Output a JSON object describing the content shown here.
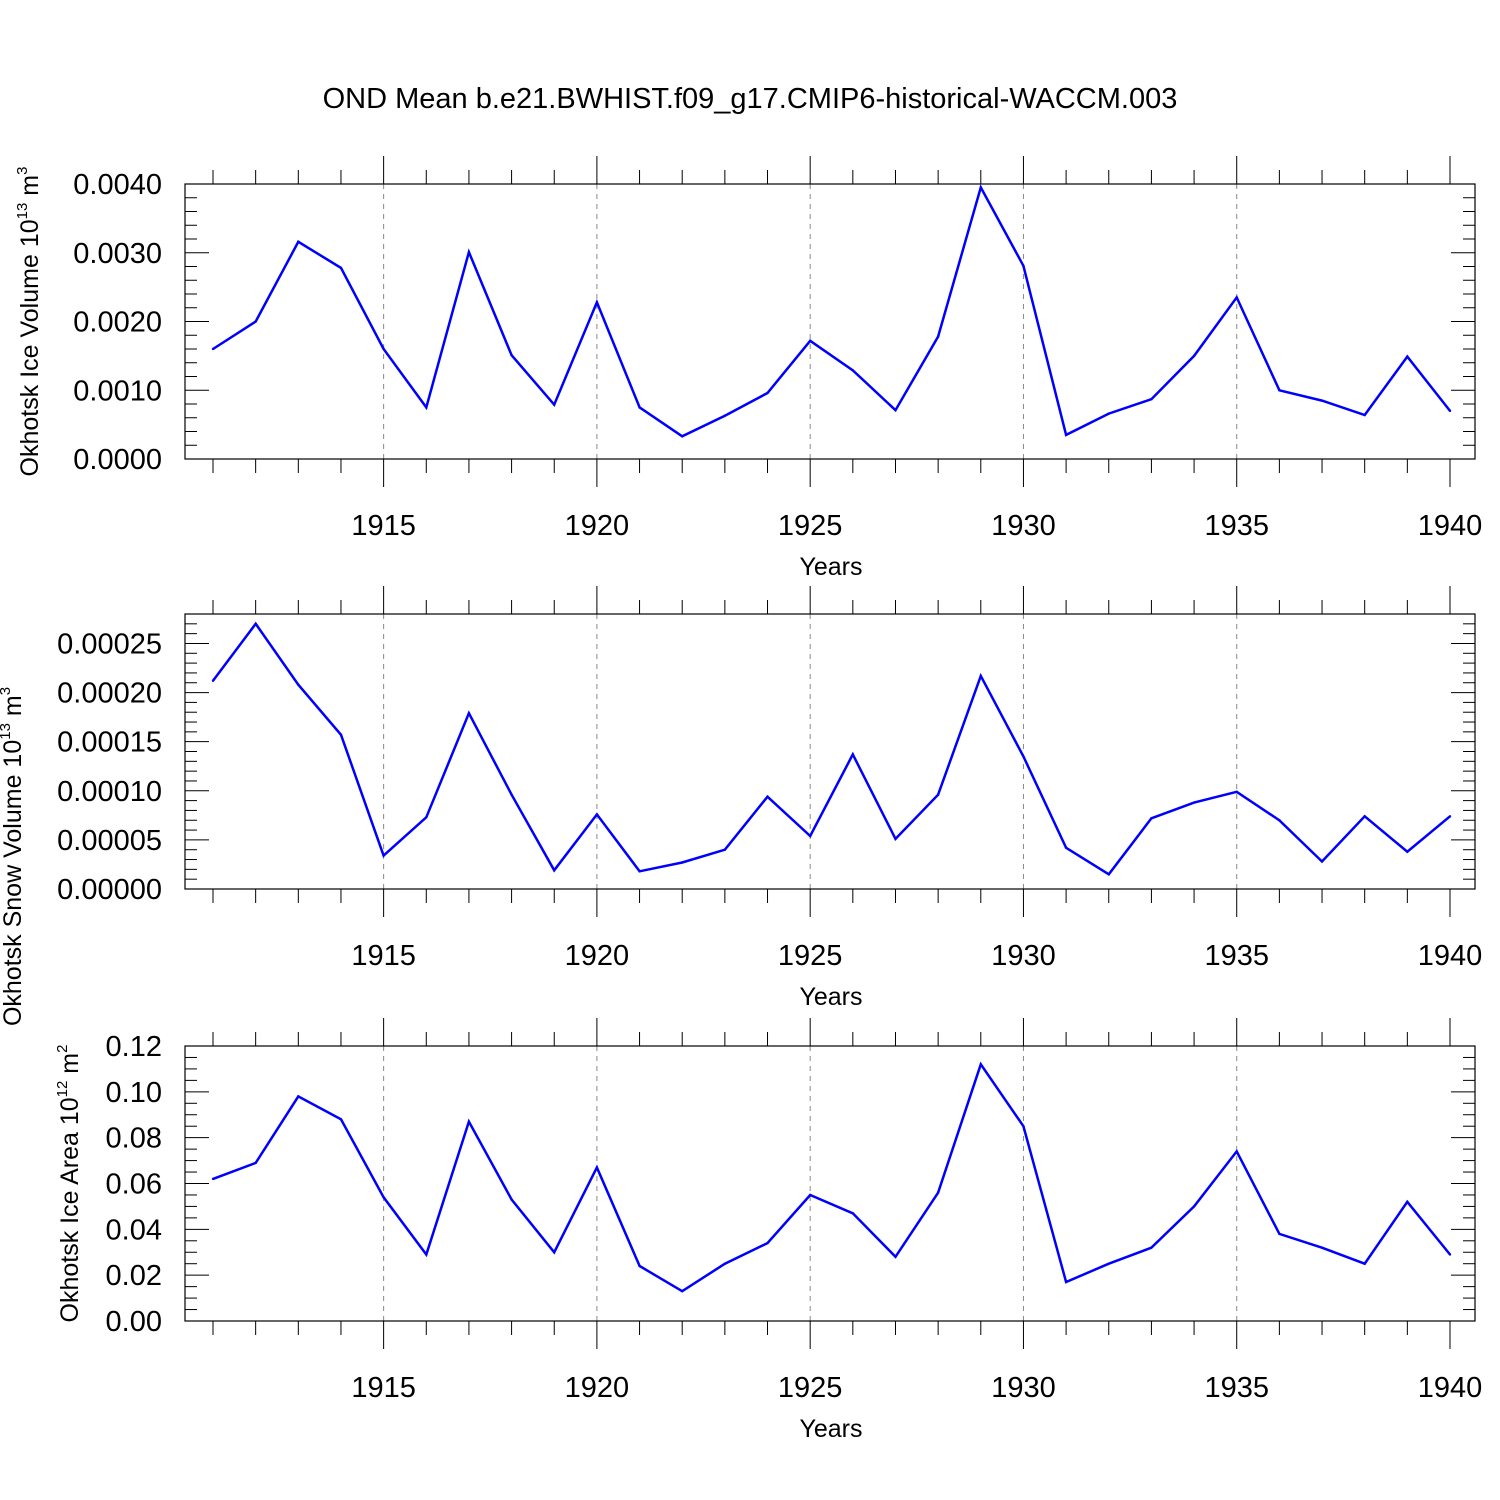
{
  "title": "OND Mean b.e21.BWHIST.f09_g17.CMIP6-historical-WACCM.003",
  "colors": {
    "line": "#0000ff",
    "axis": "#000000",
    "grid": "#888888"
  },
  "chart_data": [
    {
      "type": "line",
      "series": [
        {
          "name": "Okhotsk Ice Volume",
          "x": [
            1911,
            1912,
            1913,
            1914,
            1915,
            1916,
            1917,
            1918,
            1919,
            1920,
            1921,
            1922,
            1923,
            1924,
            1925,
            1926,
            1927,
            1928,
            1929,
            1930,
            1931,
            1932,
            1933,
            1934,
            1935,
            1936,
            1937,
            1938,
            1939,
            1940
          ],
          "values": [
            0.0016,
            0.002,
            0.00316,
            0.00278,
            0.0016,
            0.00075,
            0.00301,
            0.00151,
            0.00079,
            0.00228,
            0.00075,
            0.00033,
            0.00063,
            0.00096,
            0.00172,
            0.00129,
            0.00071,
            0.00178,
            0.00395,
            0.00281,
            0.00035,
            0.00066,
            0.00087,
            0.0015,
            0.00235,
            0.001,
            0.00085,
            0.00064,
            0.00149,
            0.0007
          ]
        }
      ],
      "xlabel": "Years",
      "ylabel": "Okhotsk Ice Volume 10",
      "ylabel_exp": "13",
      "ylabel_unit": " m",
      "ylabel_unit_exp": "3",
      "xlim": [
        1911,
        1940
      ],
      "ylim": [
        0,
        0.004
      ],
      "ytick_values": [
        0,
        0.001,
        0.002,
        0.003,
        0.004
      ],
      "ytick_labels": [
        "0.0000",
        "0.0010",
        "0.0020",
        "0.0030",
        "0.0040"
      ],
      "ytick_minor_step": 0.0002,
      "xtick_values": [
        1915,
        1920,
        1925,
        1930,
        1935,
        1940
      ],
      "xtick_labels": [
        "1915",
        "1920",
        "1925",
        "1930",
        "1935",
        "1940"
      ],
      "grid": "vertical dashed at major x ticks"
    },
    {
      "type": "line",
      "series": [
        {
          "name": "Okhotsk Snow Volume",
          "x": [
            1911,
            1912,
            1913,
            1914,
            1915,
            1916,
            1917,
            1918,
            1919,
            1920,
            1921,
            1922,
            1923,
            1924,
            1925,
            1926,
            1927,
            1928,
            1929,
            1930,
            1931,
            1932,
            1933,
            1934,
            1935,
            1936,
            1937,
            1938,
            1939,
            1940
          ],
          "values": [
            0.000212,
            0.00027,
            0.000208,
            0.000157,
            3.4e-05,
            7.3e-05,
            0.000179,
            9.6e-05,
            1.9e-05,
            7.6e-05,
            1.8e-05,
            2.7e-05,
            4e-05,
            9.4e-05,
            5.4e-05,
            0.000137,
            5.1e-05,
            9.6e-05,
            0.000217,
            0.000135,
            4.2e-05,
            1.5e-05,
            7.2e-05,
            8.8e-05,
            9.9e-05,
            7e-05,
            2.8e-05,
            7.4e-05,
            3.8e-05,
            7.4e-05
          ]
        }
      ],
      "xlabel": "Years",
      "ylabel": "Okhotsk Snow Volume 10",
      "ylabel_exp": "13",
      "ylabel_unit": " m",
      "ylabel_unit_exp": "3",
      "xlim": [
        1911,
        1940
      ],
      "ylim": [
        0,
        0.00028
      ],
      "ytick_values": [
        0,
        5e-05,
        0.0001,
        0.00015,
        0.0002,
        0.00025
      ],
      "ytick_labels": [
        "0.00000",
        "0.00005",
        "0.00010",
        "0.00015",
        "0.00020",
        "0.00025"
      ],
      "ytick_minor_step": 1e-05,
      "xtick_values": [
        1915,
        1920,
        1925,
        1930,
        1935,
        1940
      ],
      "xtick_labels": [
        "1915",
        "1920",
        "1925",
        "1930",
        "1935",
        "1940"
      ],
      "grid": "vertical dashed at major x ticks"
    },
    {
      "type": "line",
      "series": [
        {
          "name": "Okhotsk Ice Area",
          "x": [
            1911,
            1912,
            1913,
            1914,
            1915,
            1916,
            1917,
            1918,
            1919,
            1920,
            1921,
            1922,
            1923,
            1924,
            1925,
            1926,
            1927,
            1928,
            1929,
            1930,
            1931,
            1932,
            1933,
            1934,
            1935,
            1936,
            1937,
            1938,
            1939,
            1940
          ],
          "values": [
            0.062,
            0.069,
            0.098,
            0.088,
            0.054,
            0.029,
            0.087,
            0.053,
            0.03,
            0.067,
            0.024,
            0.013,
            0.025,
            0.034,
            0.055,
            0.047,
            0.028,
            0.056,
            0.112,
            0.085,
            0.017,
            0.025,
            0.032,
            0.05,
            0.074,
            0.038,
            0.032,
            0.025,
            0.052,
            0.029
          ]
        }
      ],
      "xlabel": "Years",
      "ylabel": "Okhotsk Ice Area 10",
      "ylabel_exp": "12",
      "ylabel_unit": " m",
      "ylabel_unit_exp": "2",
      "xlim": [
        1911,
        1940
      ],
      "ylim": [
        0,
        0.12
      ],
      "ytick_values": [
        0,
        0.02,
        0.04,
        0.06,
        0.08,
        0.1,
        0.12
      ],
      "ytick_labels": [
        "0.00",
        "0.02",
        "0.04",
        "0.06",
        "0.08",
        "0.10",
        "0.12"
      ],
      "ytick_minor_step": 0.005,
      "xtick_values": [
        1915,
        1920,
        1925,
        1930,
        1935,
        1940
      ],
      "xtick_labels": [
        "1915",
        "1920",
        "1925",
        "1930",
        "1935",
        "1940"
      ],
      "grid": "vertical dashed at major x ticks"
    }
  ]
}
